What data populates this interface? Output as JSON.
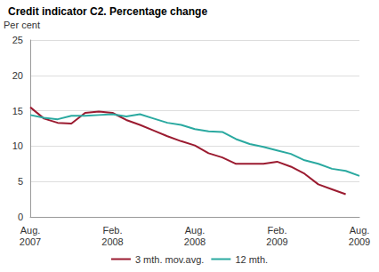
{
  "chart_data": {
    "type": "line",
    "title": "Credit indicator C2. Percentage change",
    "y_label": "Per cent",
    "categories": [
      "Aug.\n2007",
      null,
      null,
      null,
      null,
      null,
      "Feb.\n2008",
      null,
      null,
      null,
      null,
      null,
      "Aug.\n2008",
      null,
      null,
      null,
      null,
      null,
      "Feb.\n2009",
      null,
      null,
      null,
      null,
      null,
      "Aug.\n2009"
    ],
    "series": [
      {
        "name": "3 mth. mov.avg.",
        "color": "#9b1b30",
        "values": [
          15.5,
          13.9,
          13.3,
          13.2,
          14.7,
          14.9,
          14.7,
          13.7,
          13.0,
          12.2,
          11.4,
          10.7,
          10.1,
          9.0,
          8.4,
          7.5,
          7.5,
          7.5,
          7.8,
          7.1,
          6.1,
          4.6,
          3.9,
          3.2,
          null
        ]
      },
      {
        "name": "12 mth.",
        "color": "#2aa9a0",
        "values": [
          14.4,
          14.0,
          13.8,
          14.3,
          14.3,
          14.4,
          14.5,
          14.2,
          14.5,
          13.9,
          13.3,
          13.0,
          12.4,
          12.1,
          12.0,
          11.0,
          10.3,
          9.9,
          9.4,
          8.9,
          8.0,
          7.5,
          6.8,
          6.5,
          5.8
        ]
      }
    ],
    "ylim": [
      0,
      25
    ],
    "yticks": [
      0,
      5,
      10,
      15,
      20,
      25
    ],
    "grid": true,
    "legend": "bottom"
  }
}
